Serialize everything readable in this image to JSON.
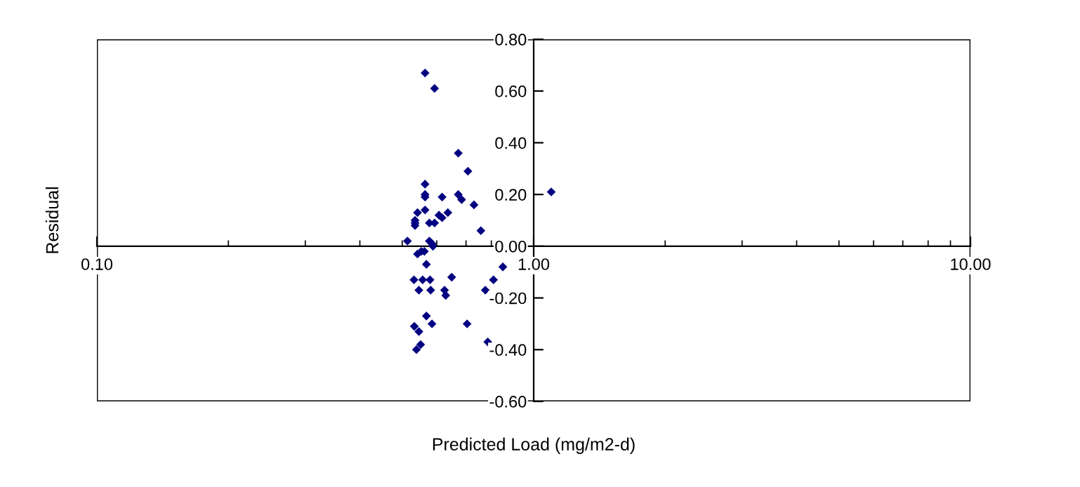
{
  "chart_data": {
    "type": "scatter",
    "xlabel": "Predicted Load (mg/m2-d)",
    "ylabel": "Residual",
    "log": "x",
    "xlim": [
      0.1,
      10
    ],
    "ylim": [
      -0.6,
      0.8
    ],
    "xticks": [
      {
        "value": 0.1,
        "label": "0.10"
      },
      {
        "value": 1,
        "label": "1.00"
      },
      {
        "value": 10,
        "label": "10.00"
      }
    ],
    "yticks": [
      {
        "value": -0.6,
        "label": "-0.60"
      },
      {
        "value": -0.4,
        "label": "-0.40"
      },
      {
        "value": -0.2,
        "label": "-0.20"
      },
      {
        "value": 0,
        "label": "0.00"
      },
      {
        "value": 0.2,
        "label": "0.20"
      },
      {
        "value": 0.4,
        "label": "0.40"
      },
      {
        "value": 0.6,
        "label": "0.60"
      },
      {
        "value": 0.8,
        "label": "0.80"
      }
    ],
    "grid": false,
    "legend": false,
    "marker": "diamond",
    "series": [
      {
        "color": "#000080",
        "x": [
          0.564,
          0.593,
          0.672,
          0.707,
          0.564,
          0.564,
          0.564,
          0.672,
          0.684,
          0.617,
          0.73,
          0.542,
          0.564,
          0.607,
          0.617,
          0.636,
          0.577,
          0.593,
          0.535,
          0.535,
          0.535,
          0.757,
          0.514,
          0.577,
          0.585,
          0.588,
          0.542,
          0.553,
          0.562,
          0.568,
          0.532,
          0.557,
          0.579,
          0.649,
          0.546,
          0.581,
          0.625,
          0.629,
          0.775,
          0.809,
          0.85,
          0.568,
          0.533,
          0.585,
          0.704,
          0.546,
          0.551,
          0.539,
          0.785,
          1.097
        ],
        "values": [
          0.67,
          0.61,
          0.36,
          0.29,
          0.24,
          0.2,
          0.19,
          0.2,
          0.18,
          0.19,
          0.16,
          0.13,
          0.14,
          0.12,
          0.11,
          0.13,
          0.09,
          0.09,
          0.1,
          0.09,
          0.08,
          0.06,
          0.02,
          0.02,
          0.01,
          0.0,
          -0.03,
          -0.02,
          -0.02,
          -0.07,
          -0.13,
          -0.13,
          -0.13,
          -0.12,
          -0.17,
          -0.17,
          -0.17,
          -0.19,
          -0.17,
          -0.13,
          -0.08,
          -0.27,
          -0.31,
          -0.3,
          -0.3,
          -0.33,
          -0.38,
          -0.4,
          -0.37,
          0.21
        ]
      }
    ]
  }
}
